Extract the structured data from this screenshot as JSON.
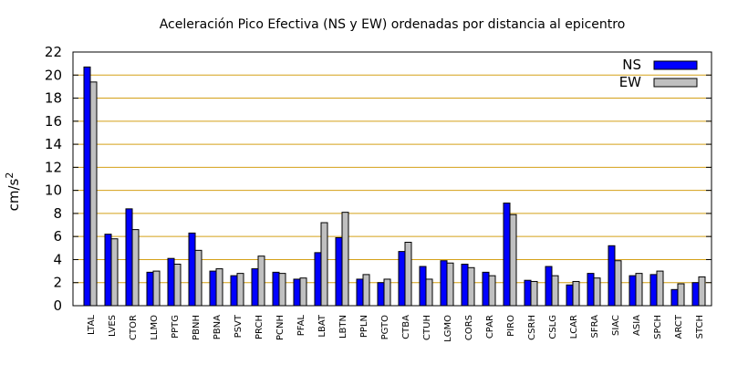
{
  "chart_data": {
    "type": "bar",
    "title": "Aceleración Pico Efectiva (NS y EW) ordenadas por distancia al epicentro",
    "ylabel_main": "cm/s",
    "ylabel_sup": "2",
    "xlabel": "",
    "ylim": [
      0,
      22
    ],
    "yticks": [
      0,
      2,
      4,
      6,
      8,
      10,
      12,
      14,
      16,
      18,
      20,
      22
    ],
    "grid": "horizontal",
    "legend_position": "top-right",
    "colors": {
      "NS": "#0000ff",
      "EW": "#c0c0c0",
      "grid": "#d4a017"
    },
    "categories": [
      "LTAL",
      "LVES",
      "CTOR",
      "LLMO",
      "PPTG",
      "PBNH",
      "PBNA",
      "PSVT",
      "PRCH",
      "PCNH",
      "PFAL",
      "LBAT",
      "LBTN",
      "PPLN",
      "PGTO",
      "CTBA",
      "CTUH",
      "LGMO",
      "CORS",
      "CPAR",
      "PIRO",
      "CSRH",
      "CSLG",
      "LCAR",
      "SFRA",
      "SIAC",
      "ASIA",
      "SPCH",
      "ARCT",
      "STCH"
    ],
    "series": [
      {
        "name": "NS",
        "values": [
          20.7,
          6.2,
          8.4,
          2.9,
          4.1,
          6.3,
          3.0,
          2.6,
          3.2,
          2.9,
          2.3,
          4.6,
          5.9,
          2.3,
          2.0,
          4.7,
          3.4,
          3.9,
          3.6,
          2.9,
          8.9,
          2.2,
          3.4,
          1.8,
          2.8,
          5.2,
          2.6,
          2.7,
          1.4,
          2.0
        ]
      },
      {
        "name": "EW",
        "values": [
          19.4,
          5.8,
          6.6,
          3.0,
          3.6,
          4.8,
          3.2,
          2.8,
          4.3,
          2.8,
          2.4,
          7.2,
          8.1,
          2.7,
          2.3,
          5.5,
          2.3,
          3.7,
          3.3,
          2.6,
          7.9,
          2.1,
          2.6,
          2.1,
          2.4,
          3.9,
          2.8,
          3.0,
          1.9,
          2.5
        ]
      }
    ]
  }
}
